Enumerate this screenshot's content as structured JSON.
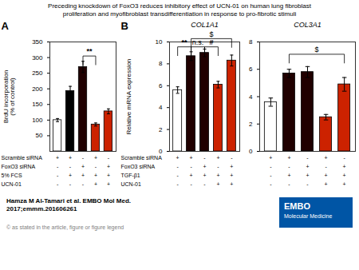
{
  "title": "Preceding knockdown of FoxO3 reduces inhibitory effect of UCN-01 on human lung fibroblast",
  "subtitle": "proliferation and myofibroblast transdifferentiation in response to pro-fibrotic stimuli",
  "footer": "Hamza M Al-Tamari et al. EMBO Mol Med.\n2017;emmm.201606261",
  "copyright": "© as stated in the article, figure or figure legend",
  "logo": [
    "EMBO",
    "Molecular Medicine"
  ],
  "chart_data": [
    {
      "type": "bar",
      "panel_label": "A",
      "ylabel": "BrdU incorporation\n(% of control)",
      "categories": [
        null,
        null,
        null,
        null,
        null
      ],
      "values": [
        100,
        193,
        270,
        86,
        128
      ],
      "errors": [
        5,
        15,
        18,
        5,
        8
      ],
      "colors": [
        "white",
        "black",
        "#200000",
        "#cc2200",
        "#cc2200"
      ],
      "ylim": [
        0,
        350
      ],
      "yticks": [
        50,
        100,
        150,
        200,
        250,
        300,
        350
      ],
      "tick_labels": "y",
      "annotations": [
        {
          "x1": 2,
          "x2": 3,
          "y": 305,
          "text": "**",
          "bold": true
        }
      ],
      "table": {
        "rows": [
          "Scramble siRNA",
          "FoxO3 siRNA",
          "5% FCS",
          "UCN-01"
        ],
        "cells": [
          [
            "+",
            "+",
            "-",
            "+",
            "-"
          ],
          [
            "-",
            "-",
            "+",
            "-",
            "+"
          ],
          [
            "-",
            "+",
            "+",
            "+",
            "+"
          ],
          [
            "-",
            "-",
            "-",
            "+",
            "+"
          ]
        ]
      }
    },
    {
      "type": "bar",
      "panel_label": "B",
      "title": "COL1A1",
      "ylabel": "Relative mRNA expression",
      "categories": [
        null,
        null,
        null,
        null,
        null
      ],
      "values": [
        5.6,
        8.7,
        9.0,
        6.1,
        8.3
      ],
      "errors": [
        0.3,
        0.4,
        0.35,
        0.3,
        0.5
      ],
      "colors": [
        "white",
        "#200000",
        "#200000",
        "#cc2200",
        "#cc2200"
      ],
      "ylim": [
        0,
        10
      ],
      "yticks": [
        0,
        2,
        4,
        6,
        8,
        10
      ],
      "tick_labels": "y",
      "annotations": [
        {
          "x1": 0,
          "x2": 1,
          "y": 9.55,
          "text": "**",
          "bold": true
        },
        {
          "x1": 1,
          "x2": 2,
          "y": 9.55,
          "text": "n.s.",
          "bold": false
        },
        {
          "x1": 2,
          "x2": 3,
          "y": 9.55,
          "text": "#",
          "bold": true
        },
        {
          "x1": 1,
          "x2": 4,
          "y": 10.3,
          "text": "$",
          "bold": false
        }
      ],
      "table": {
        "rows": [
          "Scramble siRNA",
          "FoxO3 siRNA",
          "TGF-β1",
          "UCN-01"
        ],
        "cells": [
          [
            "+",
            "+",
            "-",
            "+",
            "-"
          ],
          [
            "-",
            "-",
            "+",
            "-",
            "+"
          ],
          [
            "-",
            "+",
            "+",
            "+",
            "+"
          ],
          [
            "-",
            "-",
            "-",
            "+",
            "+"
          ]
        ]
      }
    },
    {
      "type": "bar",
      "title": "COL3A1",
      "categories": [
        null,
        null,
        null,
        null,
        null
      ],
      "values": [
        3.6,
        5.7,
        5.8,
        2.5,
        4.9
      ],
      "errors": [
        0.3,
        0.3,
        0.4,
        0.2,
        0.5
      ],
      "colors": [
        "white",
        "#200000",
        "#200000",
        "#cc2200",
        "#cc2200"
      ],
      "ylim": [
        0,
        8
      ],
      "yticks": [
        0,
        2,
        4,
        6,
        8
      ],
      "tick_labels": "y",
      "annotations": [
        {
          "x1": 1,
          "x2": 4,
          "y": 7.1,
          "text": "$",
          "bold": false
        }
      ],
      "table": {
        "cells": [
          [
            "+",
            "+",
            "-",
            "+",
            "-"
          ],
          [
            "-",
            "-",
            "+",
            "-",
            "+"
          ],
          [
            "-",
            "+",
            "+",
            "+",
            "+"
          ],
          [
            "-",
            "-",
            "-",
            "+",
            "+"
          ]
        ]
      }
    }
  ]
}
